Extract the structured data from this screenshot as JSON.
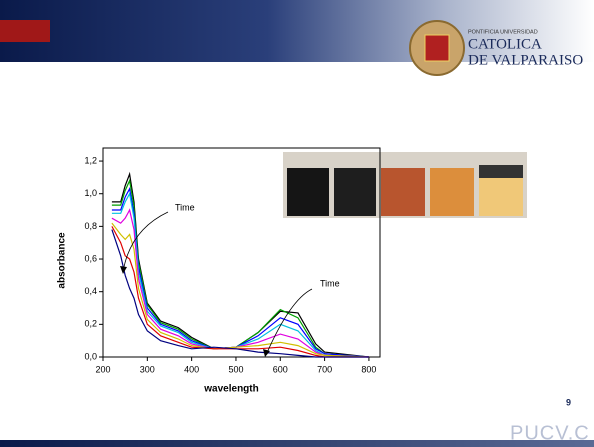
{
  "slide": {
    "logo": {
      "line1": "PONTIFICIA UNIVERSIDAD",
      "line2": "CATOLICA",
      "line3": "DE VALPARAISO"
    },
    "page_number": "9",
    "footer": "pucv.c"
  },
  "chart_data": {
    "type": "line",
    "x_label": "wavelength",
    "y_label": "absorbance",
    "annotations": [
      "Time",
      "Time"
    ],
    "x": [
      220,
      240,
      250,
      260,
      270,
      280,
      300,
      330,
      370,
      400,
      450,
      500,
      550,
      600,
      640,
      680,
      700,
      800
    ],
    "series": [
      {
        "color": "#000000",
        "values": [
          0.95,
          0.95,
          1.05,
          1.12,
          0.95,
          0.6,
          0.33,
          0.22,
          0.18,
          0.12,
          0.05,
          0.06,
          0.15,
          0.28,
          0.27,
          0.08,
          0.03,
          0.0
        ]
      },
      {
        "color": "#00a000",
        "values": [
          0.93,
          0.93,
          1.02,
          1.08,
          0.92,
          0.58,
          0.32,
          0.21,
          0.17,
          0.11,
          0.05,
          0.06,
          0.15,
          0.29,
          0.24,
          0.06,
          0.02,
          0.0
        ]
      },
      {
        "color": "#0000ff",
        "values": [
          0.9,
          0.9,
          0.98,
          1.03,
          0.88,
          0.55,
          0.3,
          0.2,
          0.16,
          0.1,
          0.05,
          0.06,
          0.13,
          0.24,
          0.2,
          0.05,
          0.02,
          0.0
        ]
      },
      {
        "color": "#00c0e0",
        "values": [
          0.88,
          0.88,
          0.95,
          1.0,
          0.85,
          0.52,
          0.28,
          0.19,
          0.15,
          0.09,
          0.05,
          0.06,
          0.11,
          0.2,
          0.16,
          0.04,
          0.01,
          0.0
        ]
      },
      {
        "color": "#e000e0",
        "values": [
          0.85,
          0.82,
          0.85,
          0.9,
          0.78,
          0.48,
          0.26,
          0.17,
          0.13,
          0.08,
          0.05,
          0.06,
          0.09,
          0.14,
          0.11,
          0.03,
          0.01,
          0.0
        ]
      },
      {
        "color": "#d0c000",
        "values": [
          0.82,
          0.75,
          0.72,
          0.75,
          0.66,
          0.42,
          0.23,
          0.15,
          0.11,
          0.07,
          0.05,
          0.06,
          0.07,
          0.09,
          0.07,
          0.02,
          0.01,
          0.0
        ]
      },
      {
        "color": "#e00000",
        "values": [
          0.8,
          0.7,
          0.62,
          0.6,
          0.52,
          0.36,
          0.2,
          0.13,
          0.09,
          0.06,
          0.05,
          0.05,
          0.05,
          0.06,
          0.04,
          0.01,
          0.0,
          0.0
        ]
      },
      {
        "color": "#000080",
        "values": [
          0.78,
          0.62,
          0.5,
          0.42,
          0.36,
          0.26,
          0.16,
          0.1,
          0.07,
          0.05,
          0.06,
          0.05,
          0.03,
          0.02,
          0.01,
          0.0,
          0.0,
          0.0
        ]
      }
    ],
    "xlim": [
      200,
      825
    ],
    "xticks": [
      200,
      300,
      400,
      500,
      600,
      700,
      800
    ],
    "ylim": [
      0,
      1.28
    ],
    "yticks": [
      {
        "value": 0,
        "label": "0,0"
      },
      {
        "value": 0.2,
        "label": "0,2"
      },
      {
        "value": 0.4,
        "label": "0,4"
      },
      {
        "value": 0.6,
        "label": "0,6"
      },
      {
        "value": 0.8,
        "label": "0,8"
      },
      {
        "value": 1.0,
        "label": "1,0"
      },
      {
        "value": 1.2,
        "label": "1,2"
      }
    ]
  }
}
